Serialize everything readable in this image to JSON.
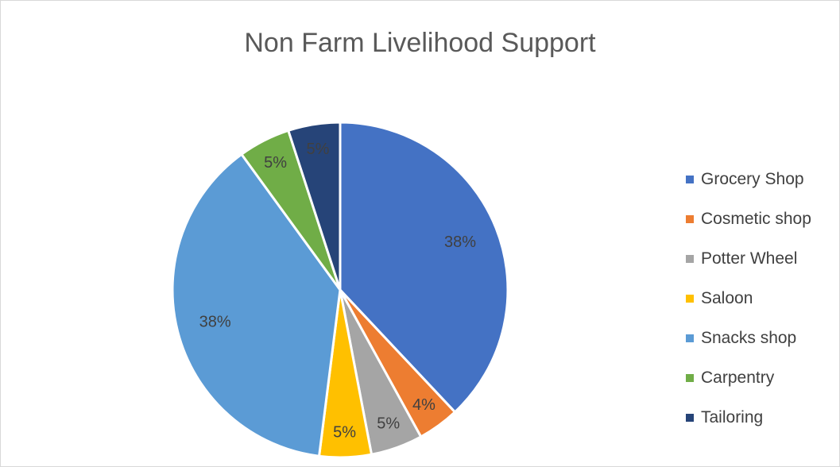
{
  "chart_data": {
    "type": "pie",
    "title": "Non Farm Livelihood Support",
    "categories": [
      "Grocery Shop",
      "Cosmetic shop",
      "Potter Wheel",
      "Saloon",
      "Snacks shop",
      "Carpentry",
      "Tailoring"
    ],
    "values": [
      38,
      4,
      5,
      5,
      38,
      5,
      5
    ],
    "data_labels": [
      "38%",
      "4%",
      "5%",
      "5%",
      "38%",
      "5%",
      "5%"
    ],
    "colors": [
      "#4472c4",
      "#ed7d31",
      "#a5a5a5",
      "#ffc000",
      "#5b9bd5",
      "#70ad47",
      "#264478"
    ],
    "legend_position": "right"
  }
}
